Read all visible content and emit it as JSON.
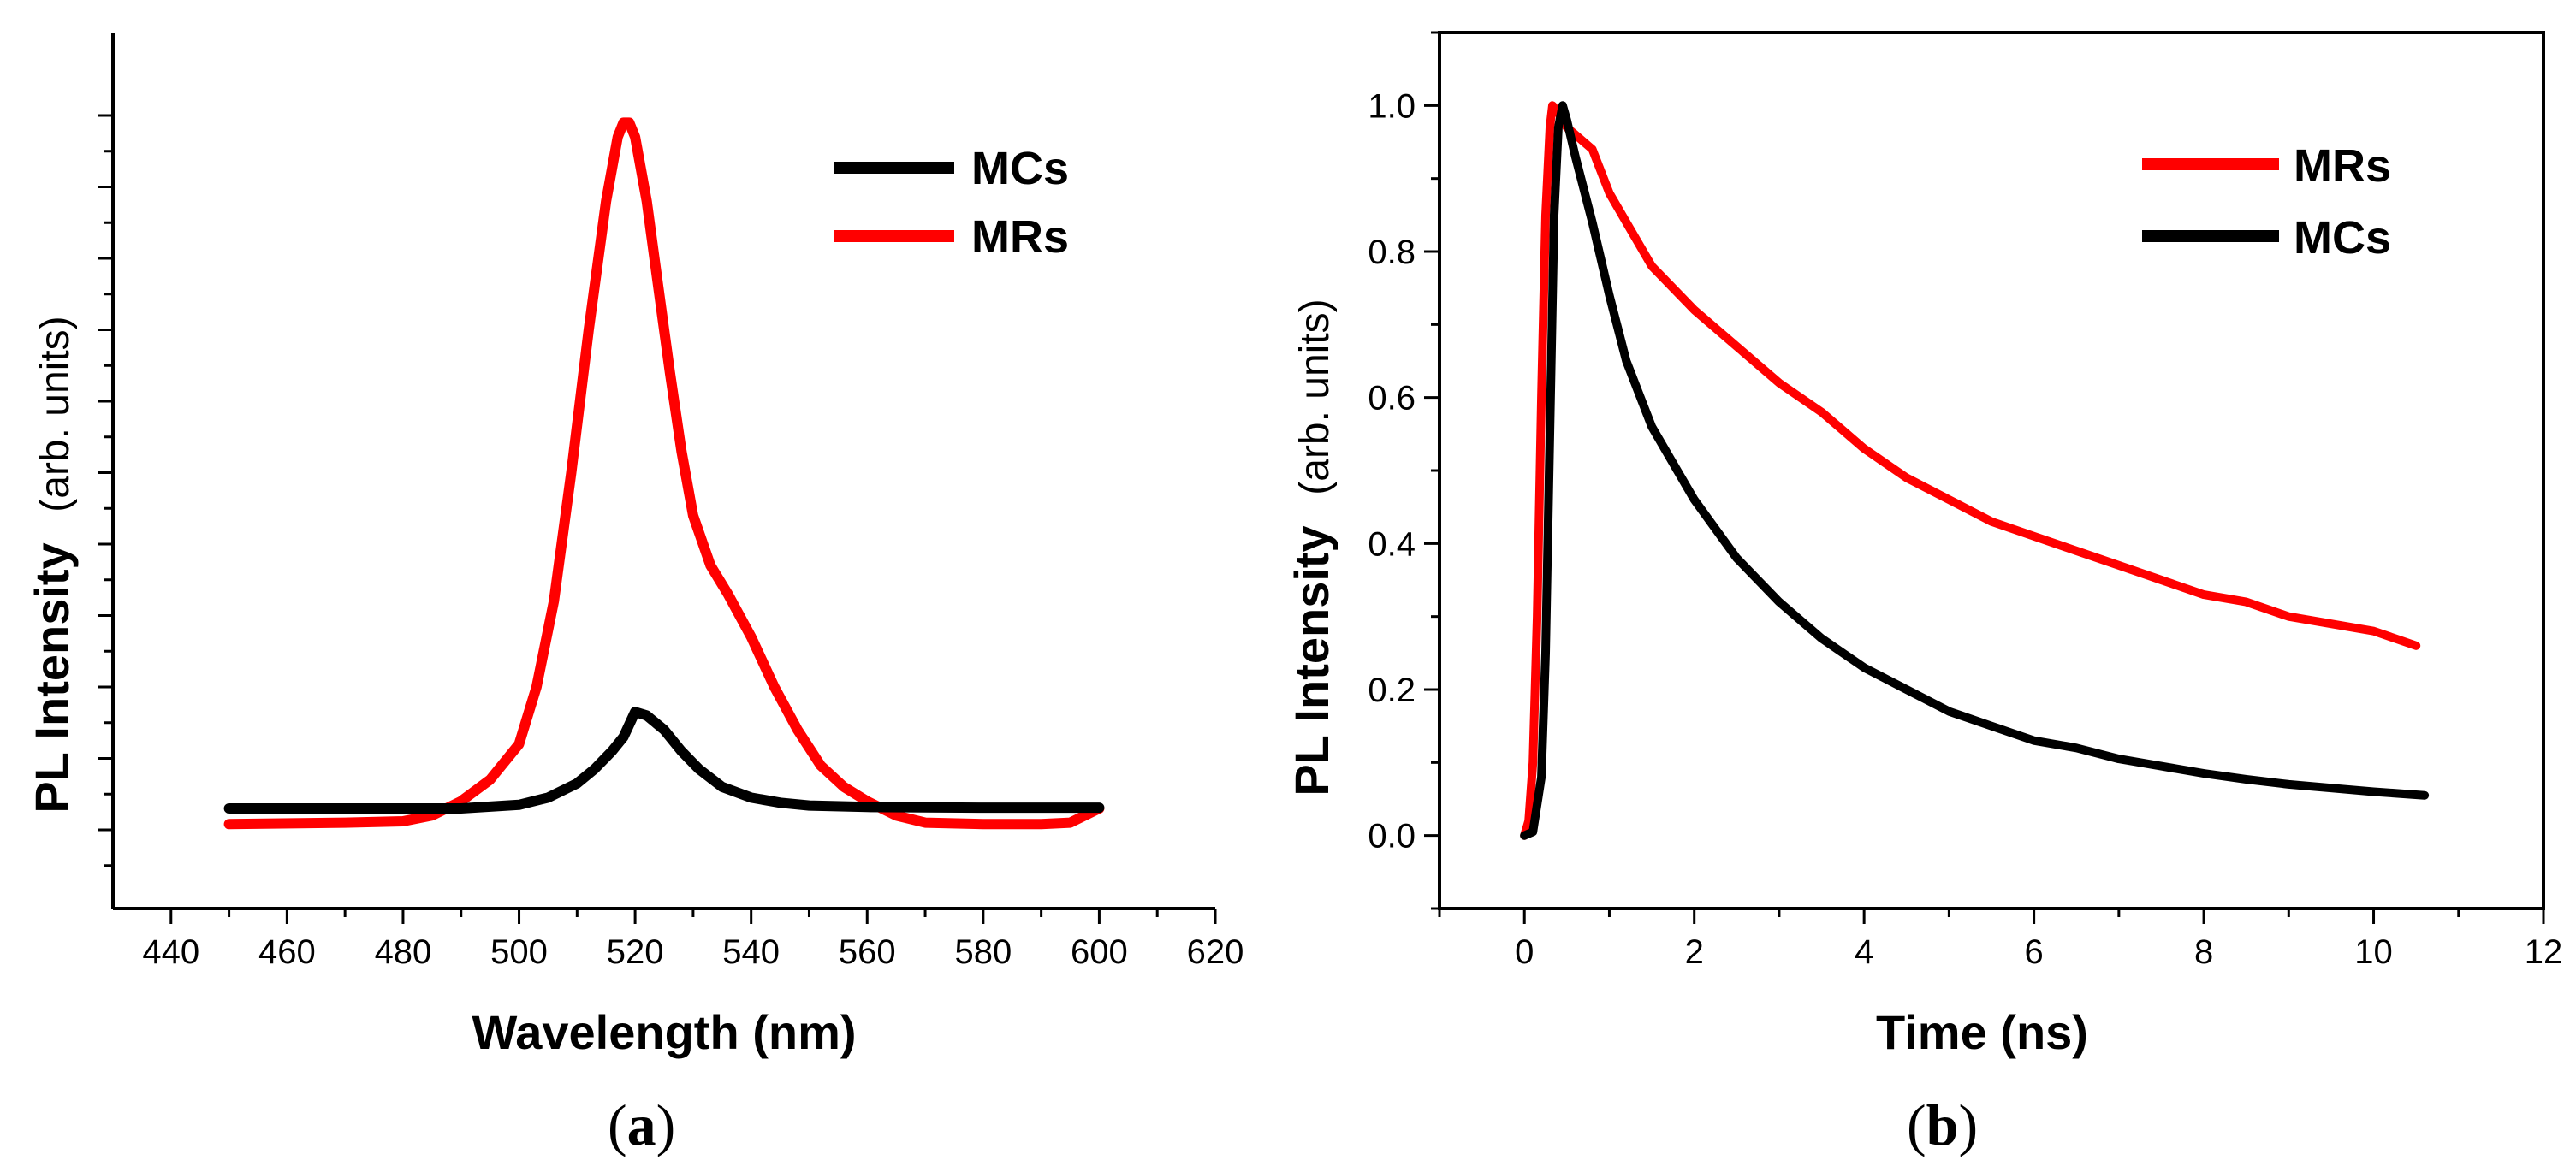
{
  "chart_data": [
    {
      "type": "line",
      "panel_label": "a",
      "xlabel": "Wavelength (nm)",
      "ylabel_main": "PL Intensity",
      "ylabel_unit": "(arb. units)",
      "xlim": [
        430,
        620
      ],
      "xticks": [
        440,
        460,
        480,
        500,
        520,
        540,
        560,
        580,
        600,
        620
      ],
      "y_tick_labels_shown": false,
      "legend_position": "top-right",
      "series": [
        {
          "name": "MCs",
          "color": "#000000",
          "points": [
            [
              450,
              0.03
            ],
            [
              470,
              0.03
            ],
            [
              490,
              0.03
            ],
            [
              500,
              0.035
            ],
            [
              505,
              0.045
            ],
            [
              510,
              0.065
            ],
            [
              513,
              0.085
            ],
            [
              516,
              0.11
            ],
            [
              518,
              0.13
            ],
            [
              520,
              0.165
            ],
            [
              522,
              0.16
            ],
            [
              525,
              0.14
            ],
            [
              528,
              0.11
            ],
            [
              531,
              0.085
            ],
            [
              535,
              0.06
            ],
            [
              540,
              0.045
            ],
            [
              545,
              0.038
            ],
            [
              550,
              0.034
            ],
            [
              560,
              0.032
            ],
            [
              580,
              0.031
            ],
            [
              600,
              0.031
            ]
          ]
        },
        {
          "name": "MRs",
          "color": "#ff0000",
          "points": [
            [
              450,
              0.008
            ],
            [
              470,
              0.01
            ],
            [
              480,
              0.012
            ],
            [
              485,
              0.02
            ],
            [
              490,
              0.04
            ],
            [
              495,
              0.07
            ],
            [
              500,
              0.12
            ],
            [
              503,
              0.2
            ],
            [
              506,
              0.32
            ],
            [
              509,
              0.5
            ],
            [
              512,
              0.7
            ],
            [
              515,
              0.88
            ],
            [
              517,
              0.97
            ],
            [
              518,
              0.99
            ],
            [
              519,
              0.99
            ],
            [
              520,
              0.97
            ],
            [
              522,
              0.88
            ],
            [
              524,
              0.76
            ],
            [
              526,
              0.64
            ],
            [
              528,
              0.53
            ],
            [
              530,
              0.44
            ],
            [
              533,
              0.37
            ],
            [
              536,
              0.33
            ],
            [
              540,
              0.27
            ],
            [
              544,
              0.2
            ],
            [
              548,
              0.14
            ],
            [
              552,
              0.09
            ],
            [
              556,
              0.06
            ],
            [
              560,
              0.04
            ],
            [
              565,
              0.02
            ],
            [
              570,
              0.01
            ],
            [
              580,
              0.008
            ],
            [
              590,
              0.008
            ],
            [
              595,
              0.01
            ],
            [
              600,
              0.03
            ]
          ]
        }
      ]
    },
    {
      "type": "line",
      "panel_label": "b",
      "xlabel": "Time (ns)",
      "ylabel_main": "PL Intensity",
      "ylabel_unit": "(arb. units)",
      "xlim": [
        -1,
        12
      ],
      "ylim": [
        -0.1,
        1.1
      ],
      "xticks": [
        0,
        2,
        4,
        6,
        8,
        10,
        12
      ],
      "yticks": [
        "0.0",
        "0.2",
        "0.4",
        "0.6",
        "0.8",
        "1.0"
      ],
      "legend_position": "top-right",
      "series": [
        {
          "name": "MRs",
          "color": "#ff0000",
          "points": [
            [
              0,
              0.0
            ],
            [
              0.05,
              0.02
            ],
            [
              0.1,
              0.1
            ],
            [
              0.15,
              0.3
            ],
            [
              0.2,
              0.6
            ],
            [
              0.25,
              0.85
            ],
            [
              0.3,
              0.97
            ],
            [
              0.33,
              1.0
            ],
            [
              0.4,
              0.99
            ],
            [
              0.5,
              0.97
            ],
            [
              0.6,
              0.96
            ],
            [
              0.8,
              0.94
            ],
            [
              1.0,
              0.88
            ],
            [
              1.2,
              0.84
            ],
            [
              1.5,
              0.78
            ],
            [
              2.0,
              0.72
            ],
            [
              2.5,
              0.67
            ],
            [
              3.0,
              0.62
            ],
            [
              3.5,
              0.58
            ],
            [
              4.0,
              0.53
            ],
            [
              4.5,
              0.49
            ],
            [
              5.0,
              0.46
            ],
            [
              5.5,
              0.43
            ],
            [
              6.0,
              0.41
            ],
            [
              6.5,
              0.39
            ],
            [
              7.0,
              0.37
            ],
            [
              7.5,
              0.35
            ],
            [
              8.0,
              0.33
            ],
            [
              8.5,
              0.32
            ],
            [
              9.0,
              0.3
            ],
            [
              9.5,
              0.29
            ],
            [
              10.0,
              0.28
            ],
            [
              10.5,
              0.26
            ]
          ]
        },
        {
          "name": "MCs",
          "color": "#000000",
          "points": [
            [
              0,
              0.0
            ],
            [
              0.1,
              0.005
            ],
            [
              0.2,
              0.08
            ],
            [
              0.25,
              0.25
            ],
            [
              0.3,
              0.55
            ],
            [
              0.35,
              0.85
            ],
            [
              0.4,
              0.97
            ],
            [
              0.45,
              1.0
            ],
            [
              0.5,
              0.98
            ],
            [
              0.6,
              0.93
            ],
            [
              0.8,
              0.84
            ],
            [
              1.0,
              0.74
            ],
            [
              1.2,
              0.65
            ],
            [
              1.5,
              0.56
            ],
            [
              2.0,
              0.46
            ],
            [
              2.5,
              0.38
            ],
            [
              3.0,
              0.32
            ],
            [
              3.5,
              0.27
            ],
            [
              4.0,
              0.23
            ],
            [
              4.5,
              0.2
            ],
            [
              5.0,
              0.17
            ],
            [
              5.5,
              0.15
            ],
            [
              6.0,
              0.13
            ],
            [
              6.5,
              0.12
            ],
            [
              7.0,
              0.105
            ],
            [
              7.5,
              0.095
            ],
            [
              8.0,
              0.085
            ],
            [
              8.5,
              0.077
            ],
            [
              9.0,
              0.07
            ],
            [
              9.5,
              0.065
            ],
            [
              10.0,
              0.06
            ],
            [
              10.6,
              0.055
            ]
          ]
        }
      ]
    }
  ]
}
